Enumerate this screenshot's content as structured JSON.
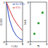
{
  "chart_data": [
    {
      "type": "line",
      "xlabel": "t (h)",
      "ylabel": "C/C0",
      "x": [
        0,
        1,
        2,
        3,
        4,
        5
      ],
      "series": [
        {
          "name": "Ru-STO",
          "color": "#1f3fbf",
          "values": [
            1.0,
            0.55,
            0.3,
            0.16,
            0.08,
            0.04
          ]
        },
        {
          "name": "STO",
          "color": "#d03030",
          "values": [
            1.0,
            0.8,
            0.62,
            0.48,
            0.37,
            0.28
          ]
        }
      ],
      "xlim": [
        0,
        5
      ],
      "xticks": [
        0,
        5
      ],
      "ylim": [
        0,
        1
      ],
      "yticks": [
        0,
        1
      ],
      "legend": "upper right"
    },
    {
      "type": "scatter",
      "ylabel": "ln k",
      "xlabel": "Ti",
      "x": [
        1,
        2,
        3
      ],
      "values": [
        -2.4,
        -1.6,
        -0.8
      ],
      "color": "#2a9a2a",
      "marker": "circle",
      "xlim": [
        0,
        4
      ],
      "xticks": [
        0,
        4
      ],
      "ylim": [
        -3,
        0
      ],
      "yticks": [
        -3,
        0
      ]
    }
  ]
}
